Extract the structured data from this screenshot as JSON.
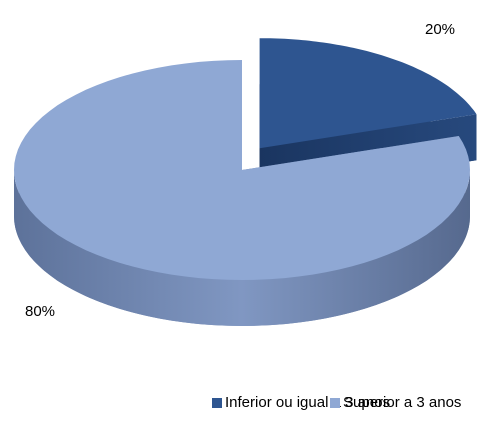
{
  "chart_data": {
    "type": "pie",
    "categories": [
      "Inferior ou igual a 3 anos",
      "Superior a 3 anos"
    ],
    "values": [
      20,
      80
    ],
    "value_labels": [
      "20%",
      "80%"
    ],
    "colors": [
      "#2e5590",
      "#8fa8d4"
    ],
    "legend": "bottom"
  }
}
